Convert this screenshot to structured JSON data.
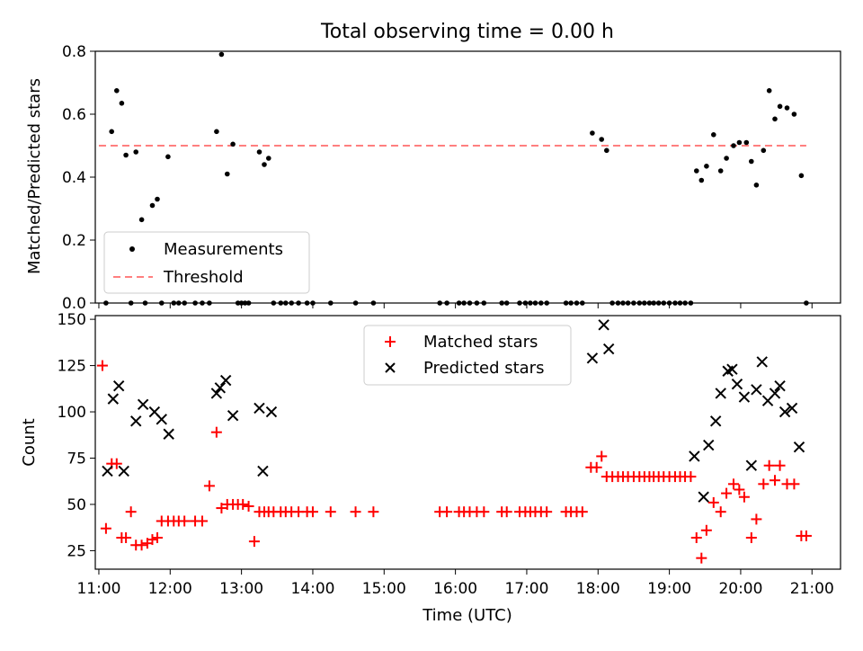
{
  "chart_data": [
    {
      "type": "scatter",
      "title": "Total observing time = 0.00 h",
      "ylabel": "Matched/Predicted stars",
      "xlabel": "",
      "xlim": [
        10.95,
        21.4
      ],
      "ylim": [
        0,
        0.8
      ],
      "yticks": [
        "0.0",
        "0.2",
        "0.4",
        "0.6",
        "0.8"
      ],
      "legend_position": "lower-left",
      "series": [
        {
          "name": "Measurements",
          "color": "#000000",
          "x": [
            11.1,
            11.18,
            11.25,
            11.32,
            11.38,
            11.45,
            11.52,
            11.6,
            11.65,
            11.75,
            11.82,
            11.88,
            11.97,
            12.05,
            12.12,
            12.2,
            12.35,
            12.45,
            12.55,
            12.65,
            12.72,
            12.8,
            12.88,
            12.95,
            13.0,
            13.05,
            13.1,
            13.25,
            13.32,
            13.38,
            13.45,
            13.55,
            13.62,
            13.7,
            13.8,
            13.92,
            14.0,
            14.25,
            14.6,
            14.85,
            15.78,
            15.88,
            16.05,
            16.12,
            16.2,
            16.3,
            16.4,
            16.65,
            16.72,
            16.9,
            16.98,
            17.05,
            17.12,
            17.2,
            17.28,
            17.55,
            17.62,
            17.7,
            17.78,
            17.92,
            18.05,
            18.12,
            18.2,
            18.28,
            18.35,
            18.42,
            18.5,
            18.58,
            18.65,
            18.72,
            18.78,
            18.85,
            18.92,
            19.0,
            19.08,
            19.15,
            19.22,
            19.3,
            19.38,
            19.45,
            19.52,
            19.62,
            19.72,
            19.8,
            19.9,
            19.98,
            20.08,
            20.15,
            20.22,
            20.32,
            20.4,
            20.48,
            20.55,
            20.65,
            20.75,
            20.85,
            20.92
          ],
          "y": [
            0,
            0.545,
            0.675,
            0.635,
            0.47,
            0,
            0.48,
            0.265,
            0,
            0.31,
            0.33,
            0,
            0.465,
            0,
            0,
            0,
            0,
            0,
            0,
            0.545,
            0.79,
            0.41,
            0.505,
            0,
            0,
            0,
            0,
            0.48,
            0.44,
            0.46,
            0,
            0,
            0,
            0,
            0,
            0,
            0,
            0,
            0,
            0,
            0,
            0,
            0,
            0,
            0,
            0,
            0,
            0,
            0,
            0,
            0,
            0,
            0,
            0,
            0,
            0,
            0,
            0,
            0,
            0.54,
            0.52,
            0.485,
            0,
            0,
            0,
            0,
            0,
            0,
            0,
            0,
            0,
            0,
            0,
            0,
            0,
            0,
            0,
            0,
            0.42,
            0.39,
            0.435,
            0.535,
            0.42,
            0.46,
            0.5,
            0.51,
            0.51,
            0.45,
            0.375,
            0.485,
            0.675,
            0.585,
            0.625,
            0.62,
            0.6,
            0.405,
            0
          ]
        },
        {
          "name": "Threshold",
          "color": "#ff7f7f",
          "style": "dashed",
          "x": [
            11.0,
            20.92
          ],
          "y": [
            0.5,
            0.5
          ]
        }
      ]
    },
    {
      "type": "scatter",
      "title": "",
      "ylabel": "Count",
      "xlabel": "Time (UTC)",
      "xlim": [
        10.95,
        21.4
      ],
      "ylim": [
        15,
        152
      ],
      "yticks": [
        "25",
        "50",
        "75",
        "100",
        "125",
        "150"
      ],
      "xticks": [
        "11:00",
        "12:00",
        "13:00",
        "14:00",
        "15:00",
        "16:00",
        "17:00",
        "18:00",
        "19:00",
        "20:00",
        "21:00"
      ],
      "legend_position": "upper-center",
      "series": [
        {
          "name": "Matched stars",
          "color": "#ff0000",
          "marker": "plus",
          "x": [
            11.05,
            11.1,
            11.18,
            11.25,
            11.32,
            11.38,
            11.45,
            11.52,
            11.6,
            11.68,
            11.75,
            11.82,
            11.88,
            11.97,
            12.05,
            12.12,
            12.2,
            12.35,
            12.45,
            12.55,
            12.65,
            12.72,
            12.8,
            12.88,
            12.95,
            13.02,
            13.1,
            13.18,
            13.25,
            13.32,
            13.38,
            13.45,
            13.55,
            13.62,
            13.7,
            13.8,
            13.92,
            14.0,
            14.25,
            14.6,
            14.85,
            15.78,
            15.88,
            16.05,
            16.12,
            16.2,
            16.3,
            16.4,
            16.65,
            16.72,
            16.9,
            16.98,
            17.05,
            17.12,
            17.2,
            17.28,
            17.55,
            17.62,
            17.7,
            17.78,
            17.9,
            17.98,
            18.05,
            18.12,
            18.2,
            18.28,
            18.35,
            18.42,
            18.5,
            18.58,
            18.65,
            18.72,
            18.78,
            18.85,
            18.92,
            19.0,
            19.08,
            19.15,
            19.22,
            19.3,
            19.38,
            19.45,
            19.52,
            19.62,
            19.72,
            19.8,
            19.9,
            19.98,
            20.05,
            20.15,
            20.22,
            20.32,
            20.4,
            20.48,
            20.55,
            20.65,
            20.75,
            20.85,
            20.92
          ],
          "y": [
            125,
            37,
            72,
            72,
            32,
            32,
            46,
            28,
            28,
            29,
            31,
            32,
            41,
            41,
            41,
            41,
            41,
            41,
            41,
            60,
            89,
            48,
            50,
            50,
            50,
            50,
            49,
            30,
            46,
            46,
            46,
            46,
            46,
            46,
            46,
            46,
            46,
            46,
            46,
            46,
            46,
            46,
            46,
            46,
            46,
            46,
            46,
            46,
            46,
            46,
            46,
            46,
            46,
            46,
            46,
            46,
            46,
            46,
            46,
            46,
            70,
            70,
            76,
            65,
            65,
            65,
            65,
            65,
            65,
            65,
            65,
            65,
            65,
            65,
            65,
            65,
            65,
            65,
            65,
            65,
            32,
            21,
            36,
            51,
            46,
            56,
            61,
            58,
            54,
            32,
            42,
            61,
            71,
            63,
            71,
            61,
            61,
            33,
            33
          ]
        },
        {
          "name": "Predicted stars",
          "color": "#000000",
          "marker": "x",
          "x": [
            11.12,
            11.2,
            11.28,
            11.35,
            11.52,
            11.62,
            11.78,
            11.88,
            11.98,
            12.65,
            12.7,
            12.78,
            12.88,
            13.25,
            13.3,
            13.42,
            17.92,
            18.08,
            18.15,
            19.35,
            19.48,
            19.55,
            19.65,
            19.72,
            19.82,
            19.88,
            19.95,
            20.05,
            20.15,
            20.22,
            20.3,
            20.38,
            20.48,
            20.55,
            20.62,
            20.72,
            20.82
          ],
          "y": [
            68,
            107,
            114,
            68,
            95,
            104,
            100,
            96,
            88,
            110,
            113,
            117,
            98,
            102,
            68,
            100,
            129,
            147,
            134,
            76,
            54,
            82,
            95,
            110,
            122,
            123,
            115,
            108,
            71,
            112,
            127,
            106,
            110,
            114,
            100,
            102,
            81
          ]
        }
      ]
    }
  ]
}
